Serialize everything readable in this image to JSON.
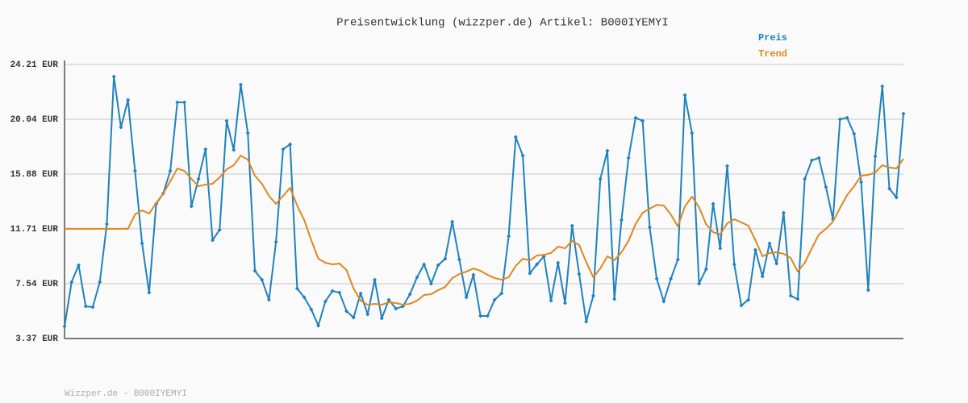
{
  "chart_data": {
    "type": "line",
    "title": "Preisentwicklung (wizzper.de) Artikel: B000IYEMYI",
    "footer": "Wizzper.de - B000IYEMYI",
    "ylim": [
      3.37,
      24.21
    ],
    "yticks": [
      {
        "value": 3.37,
        "label": "3.37 EUR"
      },
      {
        "value": 7.54,
        "label": "7.54 EUR"
      },
      {
        "value": 11.71,
        "label": "11.71 EUR"
      },
      {
        "value": 15.88,
        "label": "15.88 EUR"
      },
      {
        "value": 20.04,
        "label": "20.04 EUR"
      },
      {
        "value": 24.21,
        "label": "24.21 EUR"
      }
    ],
    "grid": true,
    "legend": "top-right",
    "series": [
      {
        "name": "Preis",
        "color": "#1f82bd",
        "markers": true,
        "values": [
          4.29,
          7.66,
          8.95,
          5.82,
          5.76,
          7.66,
          12.07,
          23.29,
          19.43,
          21.51,
          16.12,
          10.6,
          6.86,
          13.61,
          14.4,
          16.12,
          21.33,
          21.33,
          13.42,
          15.51,
          17.77,
          10.85,
          11.64,
          19.92,
          17.71,
          22.68,
          19.0,
          8.52,
          7.84,
          6.31,
          10.72,
          17.77,
          18.14,
          7.17,
          6.5,
          5.58,
          4.35,
          6.19,
          6.99,
          6.86,
          5.45,
          4.96,
          6.8,
          5.21,
          7.84,
          4.9,
          6.31,
          5.64,
          5.82,
          6.74,
          8.03,
          9.01,
          7.54,
          8.95,
          9.44,
          12.26,
          9.38,
          6.5,
          8.21,
          5.09,
          5.09,
          6.31,
          6.8,
          11.15,
          18.69,
          17.28,
          8.33,
          9.01,
          9.62,
          6.25,
          9.13,
          6.07,
          11.95,
          8.27,
          4.66,
          6.62,
          15.51,
          17.65,
          6.37,
          12.38,
          17.1,
          20.16,
          19.92,
          11.83,
          7.91,
          6.19,
          7.91,
          9.38,
          21.88,
          19.0,
          7.54,
          8.64,
          13.61,
          10.23,
          16.49,
          9.01,
          5.88,
          6.31,
          10.11,
          8.09,
          10.6,
          9.07,
          12.93,
          6.62,
          6.37,
          15.51,
          16.92,
          17.1,
          14.89,
          12.44,
          20.04,
          20.16,
          18.94,
          15.26,
          7.05,
          17.22,
          22.55,
          14.77,
          14.1,
          20.47
        ]
      },
      {
        "name": "Trend",
        "color": "#e0871f",
        "markers": false,
        "values": [
          11.71,
          11.71,
          11.71,
          11.71,
          11.71,
          11.71,
          11.71,
          11.71,
          11.71,
          11.71,
          12.81,
          13.12,
          12.87,
          13.67,
          14.4,
          15.32,
          16.3,
          16.12,
          15.51,
          14.95,
          15.08,
          15.14,
          15.63,
          16.24,
          16.55,
          17.28,
          16.98,
          15.75,
          15.14,
          14.22,
          13.61,
          14.22,
          14.83,
          13.48,
          12.38,
          10.85,
          9.44,
          9.13,
          9.01,
          9.07,
          8.58,
          7.17,
          6.25,
          5.94,
          6.01,
          5.94,
          6.13,
          6.07,
          5.94,
          6.01,
          6.25,
          6.68,
          6.74,
          7.05,
          7.29,
          7.97,
          8.27,
          8.46,
          8.7,
          8.52,
          8.21,
          7.97,
          7.84,
          8.03,
          8.89,
          9.44,
          9.32,
          9.68,
          9.74,
          9.87,
          10.36,
          10.23,
          10.79,
          10.48,
          9.19,
          8.03,
          8.7,
          9.62,
          9.32,
          9.93,
          10.79,
          12.07,
          12.93,
          13.24,
          13.54,
          13.48,
          12.81,
          11.89,
          13.42,
          14.16,
          13.36,
          12.07,
          11.46,
          11.28,
          12.13,
          12.44,
          12.2,
          11.95,
          10.85,
          9.62,
          9.87,
          9.93,
          9.81,
          9.5,
          8.46,
          9.13,
          10.23,
          11.28,
          11.71,
          12.26,
          13.3,
          14.28,
          14.95,
          15.75,
          15.81,
          16.0,
          16.55,
          16.37,
          16.3,
          17.04
        ]
      }
    ]
  }
}
